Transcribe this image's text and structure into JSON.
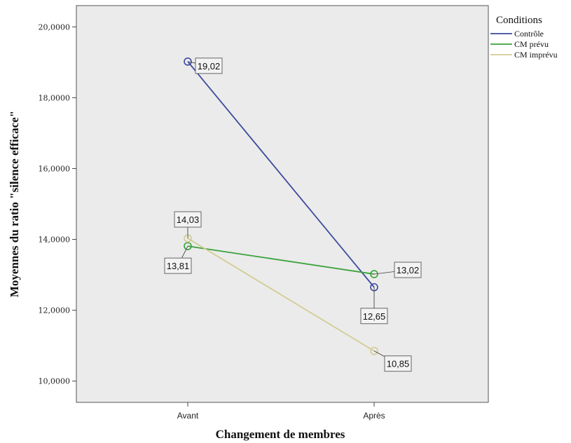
{
  "chart_data": {
    "type": "line",
    "title": "",
    "xlabel": "Changement de membres",
    "ylabel": "Moyennes du ratio \"silence efficace\"",
    "categories": [
      "Avant",
      "Après"
    ],
    "ylim": [
      9.4,
      20.6
    ],
    "yticks": [
      10,
      12,
      14,
      16,
      18,
      20
    ],
    "ytick_labels": [
      "10,0000",
      "12,0000",
      "14,0000",
      "16,0000",
      "18,0000",
      "20,0000"
    ],
    "grid": false,
    "legend": {
      "title": "Conditions",
      "position": "right"
    },
    "series": [
      {
        "name": "Contrôle",
        "color": "#3d4a9c",
        "values": [
          19.02,
          12.65
        ],
        "labels": [
          "19,02",
          "12,65"
        ]
      },
      {
        "name": "CM prévu",
        "color": "#3aa23a",
        "values": [
          13.81,
          13.02
        ],
        "labels": [
          "13,81",
          "13,02"
        ]
      },
      {
        "name": "CM imprévu",
        "color": "#d2cc94",
        "values": [
          14.03,
          10.85
        ],
        "labels": [
          "14,03",
          "10,85"
        ]
      }
    ]
  }
}
